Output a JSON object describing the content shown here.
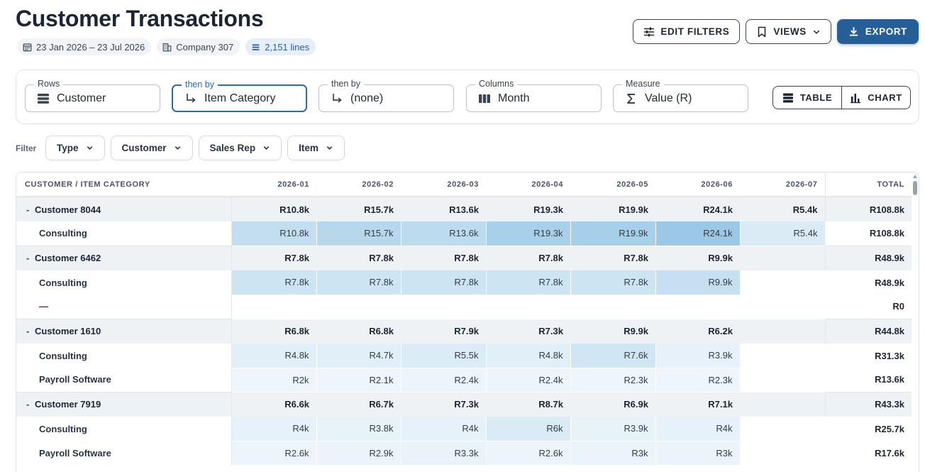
{
  "page": {
    "title": "Customer Transactions",
    "chips": [
      {
        "icon": "calendar-icon",
        "text": "23 Jan 2026 – 23 Jul 2026"
      },
      {
        "icon": "building-icon",
        "text": "Company 307"
      },
      {
        "icon": "lines-icon",
        "text": "2,151 lines"
      }
    ]
  },
  "actions": {
    "edit_filters": "EDIT FILTERS",
    "views": "VIEWS",
    "export": "EXPORT"
  },
  "config": {
    "rows": {
      "label": "Rows",
      "value": "Customer"
    },
    "then_by_1": {
      "label": "then by",
      "value": "Item Category"
    },
    "then_by_2": {
      "label": "then by",
      "value": "(none)"
    },
    "columns": {
      "label": "Columns",
      "value": "Month"
    },
    "measure": {
      "label": "Measure",
      "value": "Value (R)"
    },
    "view_table": "TABLE",
    "view_chart": "CHART"
  },
  "filters": {
    "label": "Filter",
    "items": [
      "Type",
      "Customer",
      "Sales Rep",
      "Item"
    ]
  },
  "table": {
    "header_first": "CUSTOMER / ITEM CATEGORY",
    "months": [
      "2026-01",
      "2026-02",
      "2026-03",
      "2026-04",
      "2026-05",
      "2026-06",
      "2026-07"
    ],
    "header_total": "TOTAL",
    "heat_color": "#5aa4d6",
    "groups": [
      {
        "name": "Customer 8044",
        "values": [
          "R10.8k",
          "R15.7k",
          "R13.6k",
          "R19.3k",
          "R19.9k",
          "R24.1k",
          "R5.4k"
        ],
        "total": "R108.8k",
        "children": [
          {
            "name": "Consulting",
            "values": [
              "R10.8k",
              "R15.7k",
              "R13.6k",
              "R19.3k",
              "R19.9k",
              "R24.1k",
              "R5.4k"
            ],
            "intensity": [
              0.36,
              0.44,
              0.4,
              0.52,
              0.53,
              0.6,
              0.22
            ],
            "total": "R108.8k"
          }
        ]
      },
      {
        "name": "Customer 6462",
        "values": [
          "R7.8k",
          "R7.8k",
          "R7.8k",
          "R7.8k",
          "R7.8k",
          "R9.9k",
          ""
        ],
        "total": "R48.9k",
        "children": [
          {
            "name": "Consulting",
            "values": [
              "R7.8k",
              "R7.8k",
              "R7.8k",
              "R7.8k",
              "R7.8k",
              "R9.9k",
              ""
            ],
            "intensity": [
              0.3,
              0.3,
              0.3,
              0.3,
              0.3,
              0.34,
              0
            ],
            "total": "R48.9k"
          },
          {
            "name": "—",
            "values": [
              "",
              "",
              "",
              "",
              "",
              "",
              ""
            ],
            "intensity": [
              0,
              0,
              0,
              0,
              0,
              0,
              0
            ],
            "total": "R0"
          }
        ]
      },
      {
        "name": "Customer 1610",
        "values": [
          "R6.8k",
          "R6.8k",
          "R7.9k",
          "R7.3k",
          "R9.9k",
          "R6.2k",
          ""
        ],
        "total": "R44.8k",
        "children": [
          {
            "name": "Consulting",
            "values": [
              "R4.8k",
              "R4.7k",
              "R5.5k",
              "R4.8k",
              "R7.6k",
              "R3.9k",
              ""
            ],
            "intensity": [
              0.18,
              0.18,
              0.21,
              0.18,
              0.28,
              0.15,
              0
            ],
            "total": "R31.3k"
          },
          {
            "name": "Payroll Software",
            "values": [
              "R2k",
              "R2.1k",
              "R2.4k",
              "R2.4k",
              "R2.3k",
              "R2.3k",
              ""
            ],
            "intensity": [
              0.1,
              0.1,
              0.11,
              0.11,
              0.1,
              0.1,
              0
            ],
            "total": "R13.6k"
          }
        ]
      },
      {
        "name": "Customer 7919",
        "values": [
          "R6.6k",
          "R6.7k",
          "R7.3k",
          "R8.7k",
          "R6.9k",
          "R7.1k",
          ""
        ],
        "total": "R43.3k",
        "children": [
          {
            "name": "Consulting",
            "values": [
              "R4k",
              "R3.8k",
              "R4k",
              "R6k",
              "R3.9k",
              "R4k",
              ""
            ],
            "intensity": [
              0.15,
              0.14,
              0.15,
              0.22,
              0.14,
              0.15,
              0
            ],
            "total": "R25.7k"
          },
          {
            "name": "Payroll Software",
            "values": [
              "R2.6k",
              "R2.9k",
              "R3.3k",
              "R2.6k",
              "R3k",
              "R3k",
              ""
            ],
            "intensity": [
              0.11,
              0.12,
              0.13,
              0.11,
              0.12,
              0.12,
              0
            ],
            "total": "R17.6k"
          }
        ]
      }
    ]
  }
}
